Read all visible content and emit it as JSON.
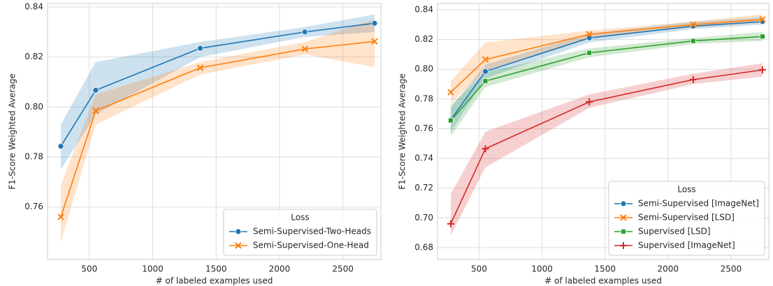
{
  "chart_data": [
    {
      "type": "line",
      "xlabel": "# of labeled examples used",
      "ylabel": "F1-Score Weighted Average",
      "x": [
        275,
        550,
        1375,
        2200,
        2750
      ],
      "xlim": [
        170,
        2800
      ],
      "ylim": [
        0.739,
        0.8414
      ],
      "xticks": [
        500,
        1000,
        1500,
        2000,
        2500
      ],
      "yticks": [
        0.76,
        0.78,
        {
          "value": 0.8,
          "label": "0.80"
        },
        0.82,
        0.84
      ],
      "grid": true,
      "legend": {
        "title": "Loss",
        "location": "lower right"
      },
      "series": [
        {
          "name": "Semi-Supervised-Two-Heads",
          "color": "#1f77b4",
          "marker": "circle",
          "values": [
            0.7843,
            0.8067,
            0.8235,
            0.83,
            0.8335
          ],
          "lower": [
            0.775,
            0.797,
            0.82,
            0.828,
            0.83
          ],
          "upper": [
            0.793,
            0.818,
            0.826,
            0.832,
            0.837
          ]
        },
        {
          "name": "Semi-Supervised-One-Head",
          "color": "#ff7f0e",
          "marker": "x",
          "values": [
            0.756,
            0.7985,
            0.8157,
            0.8232,
            0.8262
          ],
          "lower": [
            0.746,
            0.793,
            0.813,
            0.821,
            0.816
          ],
          "upper": [
            0.769,
            0.805,
            0.818,
            0.826,
            0.835
          ]
        }
      ]
    },
    {
      "type": "line",
      "xlabel": "# of labeled examples used",
      "ylabel": "F1-Score Weighted Average",
      "x": [
        275,
        550,
        1375,
        2200,
        2750
      ],
      "xlim": [
        170,
        2800
      ],
      "ylim": [
        0.672,
        0.8442
      ],
      "xticks": [
        500,
        1000,
        1500,
        2000,
        2500
      ],
      "yticks": [
        0.68,
        {
          "value": 0.7,
          "label": "0.70"
        },
        0.72,
        0.74,
        0.76,
        0.78,
        {
          "value": 0.8,
          "label": "0.80"
        },
        0.82,
        0.84
      ],
      "grid": true,
      "legend": {
        "title": "Loss",
        "location": "lower right"
      },
      "series": [
        {
          "name": "Semi-Supervised [ImageNet]",
          "color": "#1f77b4",
          "marker": "circle",
          "values": [
            0.766,
            0.7985,
            0.821,
            0.829,
            0.832
          ],
          "lower": [
            0.758,
            0.794,
            0.818,
            0.827,
            0.83
          ],
          "upper": [
            0.774,
            0.803,
            0.824,
            0.832,
            0.835
          ]
        },
        {
          "name": "Semi-Supervised [LSD]",
          "color": "#ff7f0e",
          "marker": "x",
          "values": [
            0.7845,
            0.8065,
            0.8235,
            0.83,
            0.8335
          ],
          "lower": [
            0.777,
            0.799,
            0.821,
            0.828,
            0.831
          ],
          "upper": [
            0.792,
            0.818,
            0.826,
            0.832,
            0.837
          ]
        },
        {
          "name": "Supervised [LSD]",
          "color": "#2ca02c",
          "marker": "square",
          "values": [
            0.7655,
            0.792,
            0.811,
            0.819,
            0.822
          ],
          "lower": [
            0.755,
            0.788,
            0.808,
            0.817,
            0.819
          ],
          "upper": [
            0.776,
            0.798,
            0.814,
            0.821,
            0.825
          ]
        },
        {
          "name": "Supervised [ImageNet]",
          "color": "#d62728",
          "marker": "plus",
          "values": [
            0.696,
            0.7465,
            0.778,
            0.793,
            0.7995
          ],
          "lower": [
            0.688,
            0.734,
            0.774,
            0.79,
            0.795
          ],
          "upper": [
            0.716,
            0.758,
            0.783,
            0.797,
            0.804
          ]
        }
      ]
    }
  ]
}
